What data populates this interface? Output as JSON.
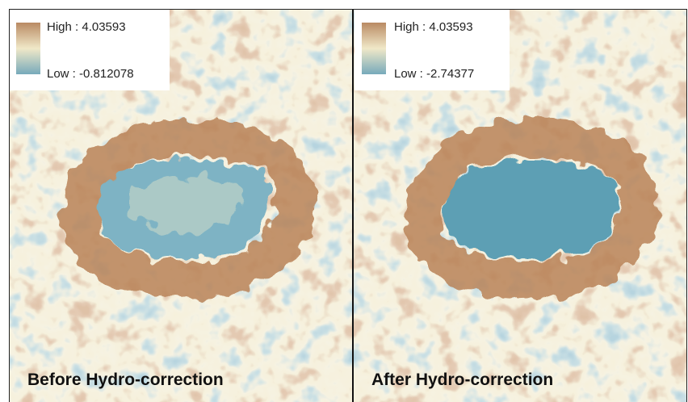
{
  "panels": [
    {
      "legend": {
        "high": "High : 4.03593",
        "low": "Low : -0.812078"
      },
      "caption": "Before Hydro-correction"
    },
    {
      "legend": {
        "high": "High : 4.03593",
        "low": "Low : -2.74377"
      },
      "caption": "After Hydro-correction"
    }
  ]
}
